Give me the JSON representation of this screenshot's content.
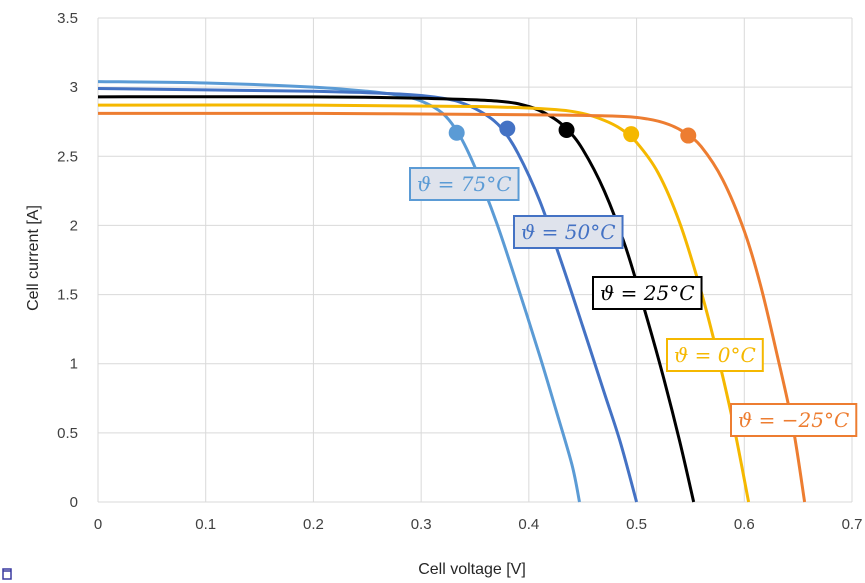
{
  "chart_data": {
    "type": "line",
    "title": "",
    "xlabel": "Cell voltage [V]",
    "ylabel": "Cell current [A]",
    "xlim": [
      0,
      0.7
    ],
    "ylim": [
      0,
      3.5
    ],
    "x_ticks": [
      "0",
      "0.1",
      "0.2",
      "0.3",
      "0.4",
      "0.5",
      "0.6",
      "0.7"
    ],
    "y_ticks": [
      "0",
      "0.5",
      "1",
      "1.5",
      "2",
      "2.5",
      "3",
      "3.5"
    ],
    "grid": true,
    "legend": "inline labels next to curves",
    "series": [
      {
        "name": "ϑ = 75°C",
        "color": "#5B9BD5",
        "points": [
          [
            0,
            3.04
          ],
          [
            0.1,
            3.03
          ],
          [
            0.2,
            3.0
          ],
          [
            0.25,
            2.97
          ],
          [
            0.28,
            2.94
          ],
          [
            0.3,
            2.9
          ],
          [
            0.32,
            2.81
          ],
          [
            0.335,
            2.66
          ],
          [
            0.35,
            2.42
          ],
          [
            0.37,
            2.02
          ],
          [
            0.39,
            1.55
          ],
          [
            0.41,
            1.06
          ],
          [
            0.425,
            0.67
          ],
          [
            0.44,
            0.27
          ],
          [
            0.447,
            0
          ]
        ],
        "mpp": [
          0.333,
          2.67
        ]
      },
      {
        "name": "ϑ = 50°C",
        "color": "#4472C4",
        "points": [
          [
            0,
            2.99
          ],
          [
            0.1,
            2.98
          ],
          [
            0.2,
            2.97
          ],
          [
            0.28,
            2.95
          ],
          [
            0.32,
            2.92
          ],
          [
            0.34,
            2.88
          ],
          [
            0.36,
            2.8
          ],
          [
            0.375,
            2.7
          ],
          [
            0.39,
            2.52
          ],
          [
            0.41,
            2.18
          ],
          [
            0.43,
            1.74
          ],
          [
            0.45,
            1.27
          ],
          [
            0.47,
            0.79
          ],
          [
            0.485,
            0.43
          ],
          [
            0.5,
            0
          ]
        ],
        "mpp": [
          0.38,
          2.7
        ]
      },
      {
        "name": "ϑ = 25°C",
        "color": "#000000",
        "points": [
          [
            0,
            2.93
          ],
          [
            0.2,
            2.93
          ],
          [
            0.3,
            2.92
          ],
          [
            0.37,
            2.9
          ],
          [
            0.4,
            2.86
          ],
          [
            0.42,
            2.79
          ],
          [
            0.435,
            2.7
          ],
          [
            0.45,
            2.55
          ],
          [
            0.47,
            2.25
          ],
          [
            0.49,
            1.84
          ],
          [
            0.51,
            1.32
          ],
          [
            0.525,
            0.9
          ],
          [
            0.54,
            0.44
          ],
          [
            0.553,
            0
          ]
        ],
        "mpp": [
          0.435,
          2.69
        ]
      },
      {
        "name": "ϑ = 0°C",
        "color": "#F5B800",
        "points": [
          [
            0,
            2.87
          ],
          [
            0.2,
            2.87
          ],
          [
            0.35,
            2.86
          ],
          [
            0.42,
            2.84
          ],
          [
            0.45,
            2.81
          ],
          [
            0.47,
            2.76
          ],
          [
            0.485,
            2.7
          ],
          [
            0.5,
            2.6
          ],
          [
            0.52,
            2.38
          ],
          [
            0.54,
            2.02
          ],
          [
            0.56,
            1.52
          ],
          [
            0.575,
            1.07
          ],
          [
            0.59,
            0.56
          ],
          [
            0.604,
            0
          ]
        ],
        "mpp": [
          0.495,
          2.66
        ]
      },
      {
        "name": "ϑ = −25°C",
        "color": "#ED7D31",
        "points": [
          [
            0,
            2.81
          ],
          [
            0.2,
            2.81
          ],
          [
            0.4,
            2.8
          ],
          [
            0.48,
            2.79
          ],
          [
            0.51,
            2.77
          ],
          [
            0.53,
            2.73
          ],
          [
            0.545,
            2.67
          ],
          [
            0.56,
            2.57
          ],
          [
            0.58,
            2.33
          ],
          [
            0.6,
            1.96
          ],
          [
            0.615,
            1.57
          ],
          [
            0.63,
            1.08
          ],
          [
            0.645,
            0.55
          ],
          [
            0.656,
            0
          ]
        ],
        "mpp": [
          0.548,
          2.65
        ]
      }
    ]
  }
}
